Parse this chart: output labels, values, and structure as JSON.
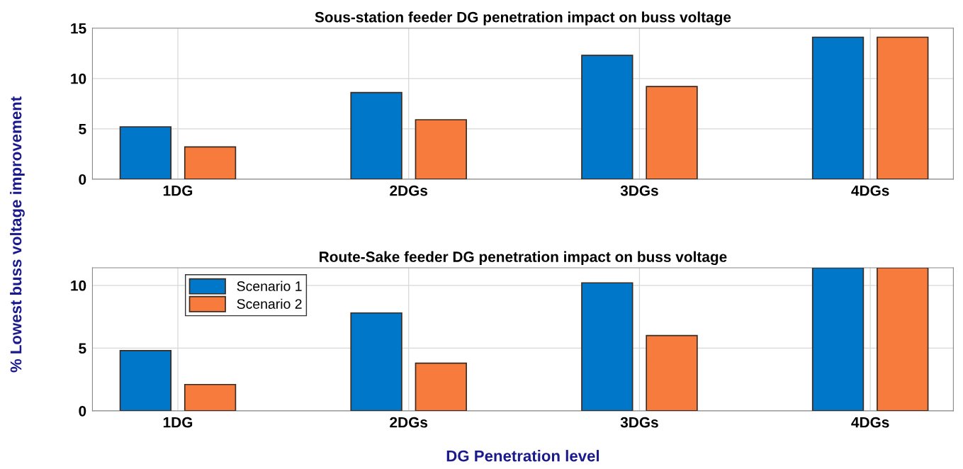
{
  "chart_data": [
    {
      "type": "bar",
      "title": "Sous-station feeder DG penetration impact on buss voltage",
      "ylabel": "% Lowest buss voltage improvement",
      "categories": [
        "1DG",
        "2DGs",
        "3DGs",
        "4DGs"
      ],
      "series": [
        {
          "color": "#0077c8",
          "values": [
            5.2,
            8.6,
            12.3,
            14.1
          ]
        },
        {
          "color": "#f77b3d",
          "values": [
            3.2,
            5.9,
            9.2,
            14.1
          ]
        }
      ],
      "ylim": [
        0,
        15
      ],
      "yticks": [
        0,
        5,
        10,
        15
      ],
      "grid": true,
      "legend": false
    },
    {
      "type": "bar",
      "title": "Route-Sake feeder DG penetration impact on buss voltage",
      "xlabel": "DG Penetration level",
      "categories": [
        "1DG",
        "2DGs",
        "3DGs",
        "4DGs"
      ],
      "series": [
        {
          "name": "Scenario 1",
          "color": "#0077c8",
          "values": [
            4.8,
            7.8,
            10.2,
            11.4
          ]
        },
        {
          "name": "Scenario 2",
          "color": "#f77b3d",
          "values": [
            2.1,
            3.8,
            6.0,
            11.4
          ]
        }
      ],
      "ylim": [
        0,
        11.4
      ],
      "yticks": [
        0,
        5,
        10
      ],
      "grid": true,
      "legend": "top left"
    }
  ]
}
